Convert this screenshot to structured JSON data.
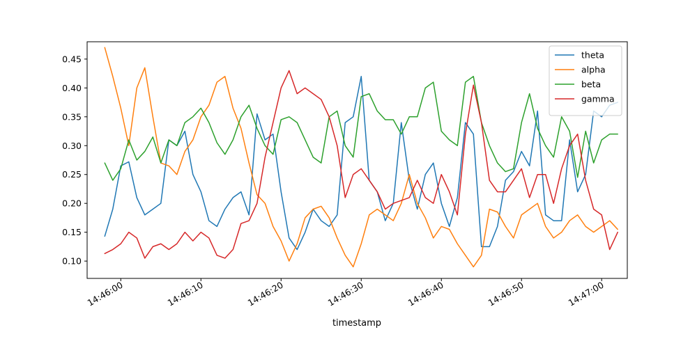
{
  "chart_data": {
    "type": "line",
    "title": "",
    "xlabel": "timestamp",
    "ylabel": "",
    "xlim": [
      "14:45:55.8",
      "14:47:03.2"
    ],
    "ylim": [
      0.07,
      0.48
    ],
    "grid": false,
    "legend_position": "top-right",
    "x_ticks": [
      "14:46:00",
      "14:46:10",
      "14:46:20",
      "14:46:30",
      "14:46:40",
      "14:46:50",
      "14:47:00"
    ],
    "y_ticks": [
      "0.10",
      "0.15",
      "0.20",
      "0.25",
      "0.30",
      "0.35",
      "0.40",
      "0.45"
    ],
    "series": [
      {
        "name": "theta",
        "color": "#1f77b4",
        "points": [
          [
            "14:45:58",
            0.143
          ],
          [
            "14:45:59",
            0.19
          ],
          [
            "14:46:00",
            0.265
          ],
          [
            "14:46:01",
            0.272
          ],
          [
            "14:46:02",
            0.21
          ],
          [
            "14:46:03",
            0.18
          ],
          [
            "14:46:04",
            0.19
          ],
          [
            "14:46:05",
            0.2
          ],
          [
            "14:46:06",
            0.31
          ],
          [
            "14:46:07",
            0.3
          ],
          [
            "14:46:08",
            0.325
          ],
          [
            "14:46:09",
            0.25
          ],
          [
            "14:46:10",
            0.22
          ],
          [
            "14:46:11",
            0.17
          ],
          [
            "14:46:12",
            0.16
          ],
          [
            "14:46:13",
            0.19
          ],
          [
            "14:46:14",
            0.21
          ],
          [
            "14:46:15",
            0.22
          ],
          [
            "14:46:16",
            0.18
          ],
          [
            "14:46:17",
            0.355
          ],
          [
            "14:46:18",
            0.31
          ],
          [
            "14:46:19",
            0.32
          ],
          [
            "14:46:20",
            0.22
          ],
          [
            "14:46:21",
            0.14
          ],
          [
            "14:46:22",
            0.12
          ],
          [
            "14:46:23",
            0.15
          ],
          [
            "14:46:24",
            0.19
          ],
          [
            "14:46:25",
            0.17
          ],
          [
            "14:46:26",
            0.16
          ],
          [
            "14:46:27",
            0.18
          ],
          [
            "14:46:28",
            0.34
          ],
          [
            "14:46:29",
            0.35
          ],
          [
            "14:46:30",
            0.42
          ],
          [
            "14:46:31",
            0.24
          ],
          [
            "14:46:32",
            0.22
          ],
          [
            "14:46:33",
            0.17
          ],
          [
            "14:46:34",
            0.2
          ],
          [
            "14:46:35",
            0.34
          ],
          [
            "14:46:36",
            0.24
          ],
          [
            "14:46:37",
            0.19
          ],
          [
            "14:46:38",
            0.25
          ],
          [
            "14:46:39",
            0.27
          ],
          [
            "14:46:40",
            0.2
          ],
          [
            "14:46:41",
            0.16
          ],
          [
            "14:46:42",
            0.21
          ],
          [
            "14:46:43",
            0.34
          ],
          [
            "14:46:44",
            0.32
          ],
          [
            "14:46:45",
            0.125
          ],
          [
            "14:46:46",
            0.125
          ],
          [
            "14:46:47",
            0.16
          ],
          [
            "14:46:48",
            0.24
          ],
          [
            "14:46:49",
            0.255
          ],
          [
            "14:46:50",
            0.29
          ],
          [
            "14:46:51",
            0.265
          ],
          [
            "14:46:52",
            0.36
          ],
          [
            "14:46:53",
            0.18
          ],
          [
            "14:46:54",
            0.17
          ],
          [
            "14:46:55",
            0.17
          ],
          [
            "14:46:56",
            0.31
          ],
          [
            "14:46:57",
            0.22
          ],
          [
            "14:46:58",
            0.25
          ],
          [
            "14:46:59",
            0.36
          ],
          [
            "14:47:00",
            0.35
          ],
          [
            "14:47:01",
            0.37
          ],
          [
            "14:47:02",
            0.375
          ]
        ]
      },
      {
        "name": "alpha",
        "color": "#ff7f0e",
        "points": [
          [
            "14:45:58",
            0.47
          ],
          [
            "14:45:59",
            0.42
          ],
          [
            "14:46:00",
            0.365
          ],
          [
            "14:46:01",
            0.3
          ],
          [
            "14:46:02",
            0.4
          ],
          [
            "14:46:03",
            0.435
          ],
          [
            "14:46:04",
            0.35
          ],
          [
            "14:46:05",
            0.27
          ],
          [
            "14:46:06",
            0.265
          ],
          [
            "14:46:07",
            0.25
          ],
          [
            "14:46:08",
            0.29
          ],
          [
            "14:46:09",
            0.31
          ],
          [
            "14:46:10",
            0.35
          ],
          [
            "14:46:11",
            0.37
          ],
          [
            "14:46:12",
            0.41
          ],
          [
            "14:46:13",
            0.42
          ],
          [
            "14:46:14",
            0.365
          ],
          [
            "14:46:15",
            0.33
          ],
          [
            "14:46:16",
            0.27
          ],
          [
            "14:46:17",
            0.215
          ],
          [
            "14:46:18",
            0.2
          ],
          [
            "14:46:19",
            0.16
          ],
          [
            "14:46:20",
            0.135
          ],
          [
            "14:46:21",
            0.1
          ],
          [
            "14:46:22",
            0.13
          ],
          [
            "14:46:23",
            0.175
          ],
          [
            "14:46:24",
            0.19
          ],
          [
            "14:46:25",
            0.195
          ],
          [
            "14:46:26",
            0.175
          ],
          [
            "14:46:27",
            0.14
          ],
          [
            "14:46:28",
            0.11
          ],
          [
            "14:46:29",
            0.09
          ],
          [
            "14:46:30",
            0.13
          ],
          [
            "14:46:31",
            0.18
          ],
          [
            "14:46:32",
            0.19
          ],
          [
            "14:46:33",
            0.18
          ],
          [
            "14:46:34",
            0.17
          ],
          [
            "14:46:35",
            0.2
          ],
          [
            "14:46:36",
            0.25
          ],
          [
            "14:46:37",
            0.2
          ],
          [
            "14:46:38",
            0.175
          ],
          [
            "14:46:39",
            0.14
          ],
          [
            "14:46:40",
            0.16
          ],
          [
            "14:46:41",
            0.155
          ],
          [
            "14:46:42",
            0.13
          ],
          [
            "14:46:43",
            0.11
          ],
          [
            "14:46:44",
            0.09
          ],
          [
            "14:46:45",
            0.11
          ],
          [
            "14:46:46",
            0.19
          ],
          [
            "14:46:47",
            0.185
          ],
          [
            "14:46:48",
            0.16
          ],
          [
            "14:46:49",
            0.14
          ],
          [
            "14:46:50",
            0.18
          ],
          [
            "14:46:51",
            0.19
          ],
          [
            "14:46:52",
            0.2
          ],
          [
            "14:46:53",
            0.16
          ],
          [
            "14:46:54",
            0.14
          ],
          [
            "14:46:55",
            0.15
          ],
          [
            "14:46:56",
            0.17
          ],
          [
            "14:46:57",
            0.18
          ],
          [
            "14:46:58",
            0.16
          ],
          [
            "14:46:59",
            0.15
          ],
          [
            "14:47:00",
            0.16
          ],
          [
            "14:47:01",
            0.17
          ],
          [
            "14:47:02",
            0.155
          ]
        ]
      },
      {
        "name": "beta",
        "color": "#2ca02c",
        "points": [
          [
            "14:45:58",
            0.27
          ],
          [
            "14:45:59",
            0.24
          ],
          [
            "14:46:00",
            0.26
          ],
          [
            "14:46:01",
            0.31
          ],
          [
            "14:46:02",
            0.275
          ],
          [
            "14:46:03",
            0.29
          ],
          [
            "14:46:04",
            0.315
          ],
          [
            "14:46:05",
            0.27
          ],
          [
            "14:46:06",
            0.31
          ],
          [
            "14:46:07",
            0.3
          ],
          [
            "14:46:08",
            0.34
          ],
          [
            "14:46:09",
            0.35
          ],
          [
            "14:46:10",
            0.365
          ],
          [
            "14:46:11",
            0.34
          ],
          [
            "14:46:12",
            0.305
          ],
          [
            "14:46:13",
            0.285
          ],
          [
            "14:46:14",
            0.31
          ],
          [
            "14:46:15",
            0.35
          ],
          [
            "14:46:16",
            0.37
          ],
          [
            "14:46:17",
            0.33
          ],
          [
            "14:46:18",
            0.3
          ],
          [
            "14:46:19",
            0.285
          ],
          [
            "14:46:20",
            0.345
          ],
          [
            "14:46:21",
            0.35
          ],
          [
            "14:46:22",
            0.34
          ],
          [
            "14:46:23",
            0.31
          ],
          [
            "14:46:24",
            0.28
          ],
          [
            "14:46:25",
            0.27
          ],
          [
            "14:46:26",
            0.35
          ],
          [
            "14:46:27",
            0.36
          ],
          [
            "14:46:28",
            0.3
          ],
          [
            "14:46:29",
            0.28
          ],
          [
            "14:46:30",
            0.385
          ],
          [
            "14:46:31",
            0.39
          ],
          [
            "14:46:32",
            0.36
          ],
          [
            "14:46:33",
            0.345
          ],
          [
            "14:46:34",
            0.345
          ],
          [
            "14:46:35",
            0.32
          ],
          [
            "14:46:36",
            0.35
          ],
          [
            "14:46:37",
            0.35
          ],
          [
            "14:46:38",
            0.4
          ],
          [
            "14:46:39",
            0.41
          ],
          [
            "14:46:40",
            0.325
          ],
          [
            "14:46:41",
            0.31
          ],
          [
            "14:46:42",
            0.3
          ],
          [
            "14:46:43",
            0.41
          ],
          [
            "14:46:44",
            0.42
          ],
          [
            "14:46:45",
            0.34
          ],
          [
            "14:46:46",
            0.3
          ],
          [
            "14:46:47",
            0.27
          ],
          [
            "14:46:48",
            0.255
          ],
          [
            "14:46:49",
            0.26
          ],
          [
            "14:46:50",
            0.34
          ],
          [
            "14:46:51",
            0.39
          ],
          [
            "14:46:52",
            0.33
          ],
          [
            "14:46:53",
            0.3
          ],
          [
            "14:46:54",
            0.28
          ],
          [
            "14:46:55",
            0.35
          ],
          [
            "14:46:56",
            0.325
          ],
          [
            "14:46:57",
            0.245
          ],
          [
            "14:46:58",
            0.325
          ],
          [
            "14:46:59",
            0.27
          ],
          [
            "14:47:00",
            0.31
          ],
          [
            "14:47:01",
            0.32
          ],
          [
            "14:47:02",
            0.32
          ]
        ]
      },
      {
        "name": "gamma",
        "color": "#d62728",
        "points": [
          [
            "14:45:58",
            0.113
          ],
          [
            "14:45:59",
            0.12
          ],
          [
            "14:46:00",
            0.13
          ],
          [
            "14:46:01",
            0.15
          ],
          [
            "14:46:02",
            0.14
          ],
          [
            "14:46:03",
            0.105
          ],
          [
            "14:46:04",
            0.125
          ],
          [
            "14:46:05",
            0.13
          ],
          [
            "14:46:06",
            0.12
          ],
          [
            "14:46:07",
            0.13
          ],
          [
            "14:46:08",
            0.15
          ],
          [
            "14:46:09",
            0.135
          ],
          [
            "14:46:10",
            0.15
          ],
          [
            "14:46:11",
            0.14
          ],
          [
            "14:46:12",
            0.11
          ],
          [
            "14:46:13",
            0.105
          ],
          [
            "14:46:14",
            0.12
          ],
          [
            "14:46:15",
            0.165
          ],
          [
            "14:46:16",
            0.17
          ],
          [
            "14:46:17",
            0.2
          ],
          [
            "14:46:18",
            0.28
          ],
          [
            "14:46:19",
            0.34
          ],
          [
            "14:46:20",
            0.4
          ],
          [
            "14:46:21",
            0.43
          ],
          [
            "14:46:22",
            0.39
          ],
          [
            "14:46:23",
            0.4
          ],
          [
            "14:46:24",
            0.39
          ],
          [
            "14:46:25",
            0.38
          ],
          [
            "14:46:26",
            0.35
          ],
          [
            "14:46:27",
            0.3
          ],
          [
            "14:46:28",
            0.21
          ],
          [
            "14:46:29",
            0.25
          ],
          [
            "14:46:30",
            0.26
          ],
          [
            "14:46:31",
            0.24
          ],
          [
            "14:46:32",
            0.22
          ],
          [
            "14:46:33",
            0.19
          ],
          [
            "14:46:34",
            0.2
          ],
          [
            "14:46:35",
            0.205
          ],
          [
            "14:46:36",
            0.21
          ],
          [
            "14:46:37",
            0.24
          ],
          [
            "14:46:38",
            0.21
          ],
          [
            "14:46:39",
            0.2
          ],
          [
            "14:46:40",
            0.25
          ],
          [
            "14:46:41",
            0.22
          ],
          [
            "14:46:42",
            0.18
          ],
          [
            "14:46:43",
            0.32
          ],
          [
            "14:46:44",
            0.405
          ],
          [
            "14:46:45",
            0.34
          ],
          [
            "14:46:46",
            0.24
          ],
          [
            "14:46:47",
            0.22
          ],
          [
            "14:46:48",
            0.22
          ],
          [
            "14:46:49",
            0.24
          ],
          [
            "14:46:50",
            0.26
          ],
          [
            "14:46:51",
            0.21
          ],
          [
            "14:46:52",
            0.25
          ],
          [
            "14:46:53",
            0.25
          ],
          [
            "14:46:54",
            0.2
          ],
          [
            "14:46:55",
            0.26
          ],
          [
            "14:46:56",
            0.3
          ],
          [
            "14:46:57",
            0.32
          ],
          [
            "14:46:58",
            0.24
          ],
          [
            "14:46:59",
            0.19
          ],
          [
            "14:47:00",
            0.18
          ],
          [
            "14:47:01",
            0.12
          ],
          [
            "14:47:02",
            0.15
          ]
        ]
      }
    ]
  }
}
